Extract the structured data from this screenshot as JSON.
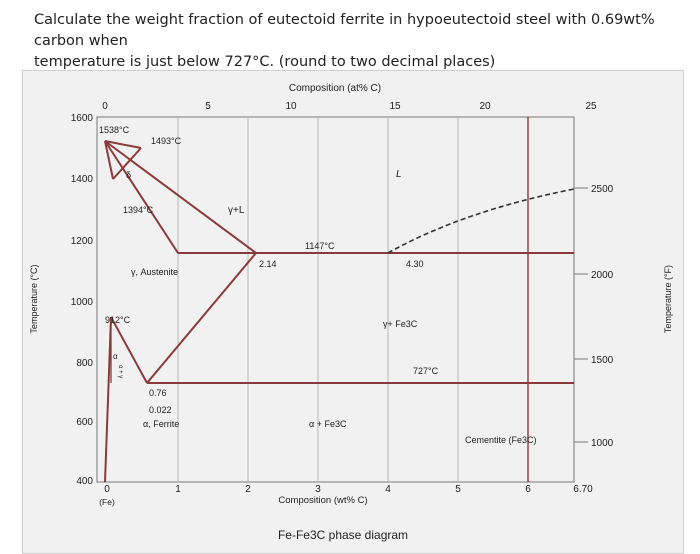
{
  "question": {
    "line1": "Calculate the weight fraction of eutectoid ferrite in hypoeutectoid steel with 0.69wt% carbon when",
    "line2": "temperature is just below 727°C. (round to two decimal places)"
  },
  "diagram": {
    "caption": "Fe-Fe3C phase diagram",
    "top_axis": {
      "label": "Composition (at% C)",
      "ticks": [
        "0",
        "5",
        "10",
        "15",
        "20",
        "25"
      ]
    },
    "bottom_axis": {
      "label": "Composition (wt% C)",
      "ticks": [
        "0",
        "1",
        "2",
        "3",
        "4",
        "5",
        "6",
        "6.70"
      ],
      "origin_note": "(Fe)"
    },
    "left_axis": {
      "label": "Temperature (°C)",
      "ticks": [
        "1600",
        "1400",
        "1200",
        "1000",
        "800",
        "600",
        "400"
      ]
    },
    "right_axis": {
      "label": "Temperature (°F)",
      "ticks": [
        "2500",
        "2000",
        "1500",
        "1000"
      ]
    },
    "annotations": {
      "t1538": "1538°C",
      "t1493": "1493°C",
      "t1394": "1394°C",
      "t1147": "1147°C",
      "t912": "912°C",
      "t727": "727°C",
      "c214": "2.14",
      "c430": "4.30",
      "c076": "0.76",
      "c0022": "0.022",
      "delta": "δ",
      "liquid": "L",
      "gamma_liquid": "γ+L",
      "austenite": "γ, Austenite",
      "gamma_cementite": "γ+ Fe3C",
      "alpha_cementite": "α + Fe3C",
      "ferrite": "α, Ferrite",
      "cementite": "Cementite (Fe3C)",
      "alpha_gamma": "α + γ",
      "alpha": "α"
    }
  }
}
